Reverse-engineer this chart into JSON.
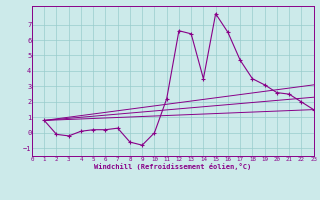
{
  "xlabel": "Windchill (Refroidissement éolien,°C)",
  "xlim": [
    0,
    23
  ],
  "ylim": [
    -1.5,
    8.2
  ],
  "yticks": [
    -1,
    0,
    1,
    2,
    3,
    4,
    5,
    6,
    7
  ],
  "xticks": [
    0,
    1,
    2,
    3,
    4,
    5,
    6,
    7,
    8,
    9,
    10,
    11,
    12,
    13,
    14,
    15,
    16,
    17,
    18,
    19,
    20,
    21,
    22,
    23
  ],
  "bg_color": "#cceaea",
  "line_color": "#880088",
  "grid_color": "#99cccc",
  "main_line": {
    "x": [
      1,
      2,
      3,
      4,
      5,
      6,
      7,
      8,
      9,
      10,
      11,
      12,
      13,
      14,
      15,
      16,
      17,
      18,
      19,
      20,
      21,
      22,
      23
    ],
    "y": [
      0.8,
      -0.1,
      -0.2,
      0.1,
      0.2,
      0.2,
      0.3,
      -0.6,
      -0.8,
      0.0,
      2.2,
      6.6,
      6.4,
      3.5,
      7.7,
      6.5,
      4.7,
      3.5,
      3.1,
      2.6,
      2.5,
      2.0,
      1.5
    ]
  },
  "trend1": {
    "x": [
      1,
      23
    ],
    "y": [
      0.8,
      1.5
    ]
  },
  "trend2": {
    "x": [
      1,
      23
    ],
    "y": [
      0.8,
      2.3
    ]
  },
  "trend3": {
    "x": [
      1,
      23
    ],
    "y": [
      0.8,
      3.1
    ]
  }
}
